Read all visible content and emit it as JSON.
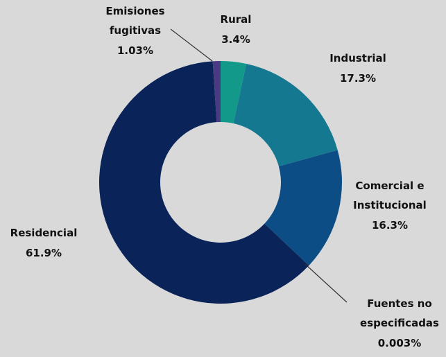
{
  "chart_data": {
    "type": "donut",
    "categories": [
      "Rural",
      "Industrial",
      "Comercial e Institucional",
      "Fuentes no especificadas",
      "Residencial",
      "Emisiones fugitivas"
    ],
    "values": [
      3.4,
      17.3,
      16.3,
      0.003,
      61.9,
      1.03
    ],
    "value_labels": [
      "3.4%",
      "17.3%",
      "16.3%",
      "0.003%",
      "61.9%",
      "1.03%"
    ],
    "colors": [
      "#12998a",
      "#157891",
      "#0d4d85",
      "#0b3370",
      "#0a2358",
      "#4a3a83"
    ]
  }
}
